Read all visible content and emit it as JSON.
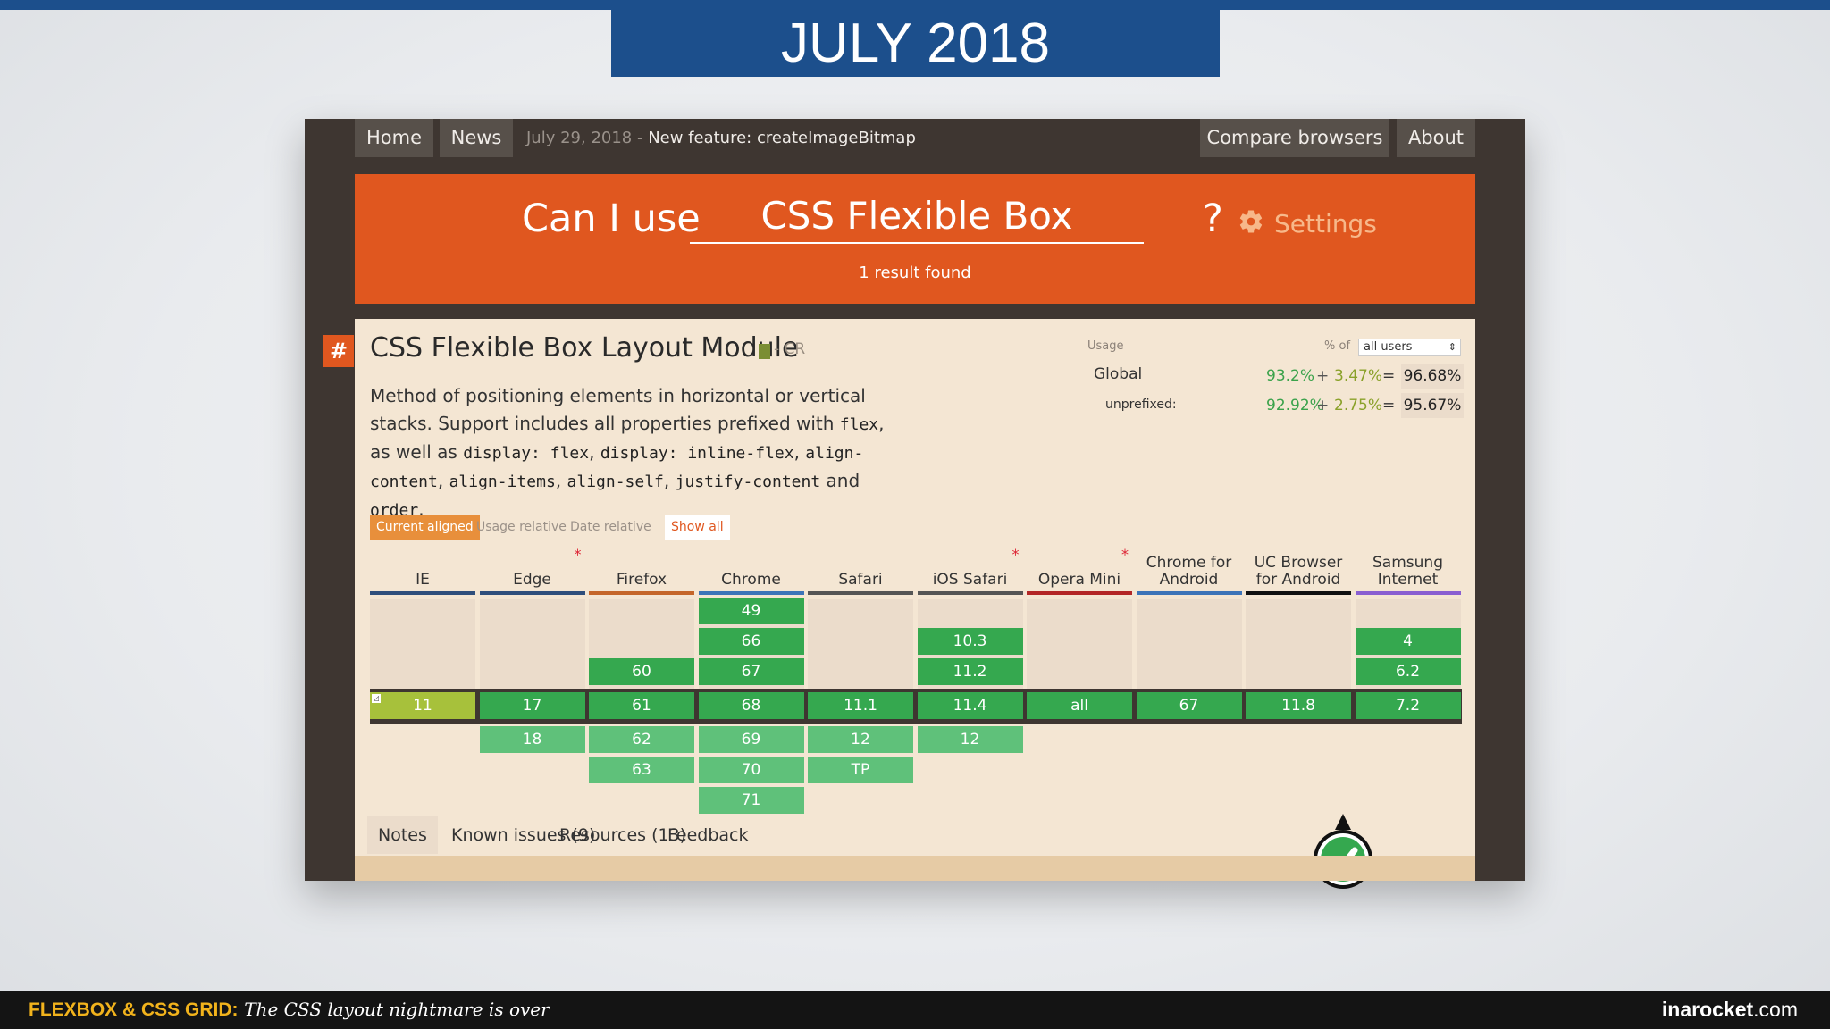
{
  "slide": {
    "title": "JULY 2018",
    "footer_brand": "FLEXBOX & CSS GRID:",
    "footer_tagline": "The CSS layout nightmare is over",
    "footer_site_bold": "inarocket",
    "footer_site_suffix": ".com"
  },
  "nav": {
    "home": "Home",
    "news": "News",
    "news_date": "July 29, 2018",
    "news_sep": " - ",
    "news_title": "New feature: createImageBitmap",
    "compare": "Compare browsers",
    "about": "About"
  },
  "search": {
    "label": "Can I use",
    "query": "CSS Flexible Box",
    "qmark": "?",
    "settings": "Settings",
    "result": "1 result found"
  },
  "feature": {
    "hash": "#",
    "title": "CSS Flexible Box Layout Module",
    "status": "- CR",
    "desc_1": "Method of positioning elements in horizontal or vertical stacks. Support includes all properties prefixed with ",
    "code_flex": "flex",
    "desc_2": ", as well as ",
    "code_display_flex": "display: flex",
    "comma": ", ",
    "code_display_inline": "display: inline-flex",
    "code_align_content": "align-content",
    "code_align_items": "align-items",
    "code_align_self": "align-self",
    "code_justify": "justify-content",
    "and": " and ",
    "code_order": "order",
    "period": "."
  },
  "usage": {
    "label": "Usage",
    "pct_of": "% of",
    "users": "all users",
    "global": {
      "name": "Global",
      "v1": "93.2%",
      "plus": "+",
      "v2": "3.47%",
      "eq": "=",
      "total": "96.68%"
    },
    "unprefixed": {
      "name": "unprefixed:",
      "v1": "92.92%",
      "plus": "+",
      "v2": "2.75%",
      "eq": "=",
      "total": "95.67%"
    }
  },
  "view_tabs": {
    "current": "Current aligned",
    "usage": "Usage relative",
    "date": "Date relative",
    "show_all": "Show all"
  },
  "browsers": [
    {
      "name": "IE",
      "line": "#2f4f7c",
      "star": false,
      "past": [],
      "current": "11",
      "current_partial": true,
      "future": []
    },
    {
      "name": "Edge",
      "line": "#2f4f7c",
      "star": true,
      "past": [],
      "current": "17",
      "future": [
        "18"
      ]
    },
    {
      "name": "Firefox",
      "line": "#c5662a",
      "star": false,
      "past": [
        "60"
      ],
      "current": "61",
      "future": [
        "62",
        "63"
      ]
    },
    {
      "name": "Chrome",
      "line": "#3d74b8",
      "star": false,
      "past": [
        "49",
        "66",
        "67"
      ],
      "current": "68",
      "future": [
        "69",
        "70",
        "71"
      ]
    },
    {
      "name": "Safari",
      "line": "#555555",
      "star": false,
      "past": [],
      "current": "11.1",
      "future": [
        "12",
        "TP"
      ]
    },
    {
      "name": "iOS Safari",
      "line": "#555555",
      "star": true,
      "past": [
        "10.3",
        "11.2"
      ],
      "current": "11.4",
      "future": [
        "12"
      ]
    },
    {
      "name": "Opera Mini",
      "line": "#b32626",
      "star": true,
      "past": [],
      "current": "all",
      "future": []
    },
    {
      "name": "Chrome for Android",
      "line": "#3d74b8",
      "star": false,
      "past": [],
      "current": "67",
      "future": []
    },
    {
      "name": "UC Browser for Android",
      "line": "#111111",
      "star": false,
      "past": [],
      "current": "11.8",
      "future": []
    },
    {
      "name": "Samsung Internet",
      "line": "#8a5fd1",
      "star": false,
      "past": [
        "4",
        "6.2"
      ],
      "current": "7.2",
      "future": []
    }
  ],
  "tabs": {
    "notes": "Notes",
    "issues": "Known issues (9)",
    "resources": "Resources (13)",
    "feedback": "Feedback"
  },
  "colors": {
    "orange": "#e0571f",
    "supported": "#35a84f",
    "partial": "#a7c13b",
    "navy": "#1c4f8c"
  }
}
